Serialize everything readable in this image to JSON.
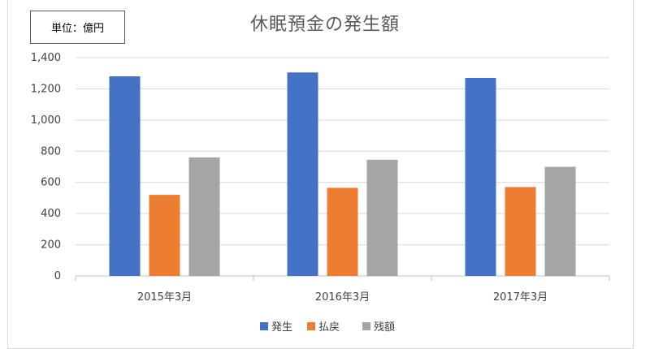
{
  "unit_label": "単位：億円",
  "chart_data": {
    "type": "bar",
    "title": "休眠預金の発生額",
    "categories": [
      "2015年3月",
      "2016年3月",
      "2017年3月"
    ],
    "series": [
      {
        "name": "発生",
        "values": [
          1280,
          1305,
          1270
        ],
        "color": "#4472c4"
      },
      {
        "name": "払戻",
        "values": [
          520,
          565,
          570
        ],
        "color": "#ed7d31"
      },
      {
        "name": "残額",
        "values": [
          760,
          745,
          700
        ],
        "color": "#a5a5a5"
      }
    ],
    "ylim": [
      0,
      1400
    ],
    "yticks": [
      "0",
      "200",
      "400",
      "600",
      "800",
      "1,000",
      "1,200",
      "1,400"
    ],
    "ytick_values": [
      0,
      200,
      400,
      600,
      800,
      1000,
      1200,
      1400
    ],
    "grid": true,
    "legend_position": "bottom"
  }
}
